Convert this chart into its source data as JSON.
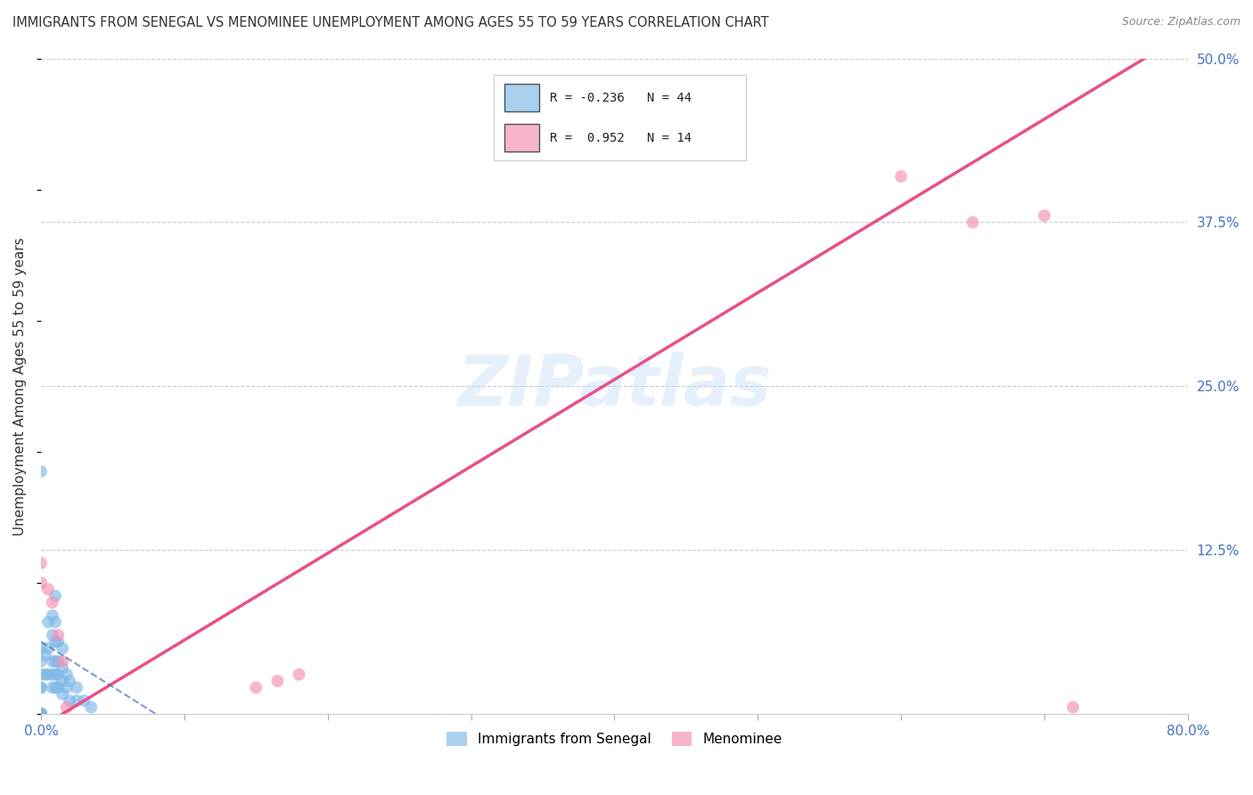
{
  "title": "IMMIGRANTS FROM SENEGAL VS MENOMINEE UNEMPLOYMENT AMONG AGES 55 TO 59 YEARS CORRELATION CHART",
  "source": "Source: ZipAtlas.com",
  "ylabel": "Unemployment Among Ages 55 to 59 years",
  "xlim": [
    0.0,
    0.8
  ],
  "ylim": [
    0.0,
    0.5
  ],
  "xticks": [
    0.0,
    0.1,
    0.2,
    0.3,
    0.4,
    0.5,
    0.6,
    0.7,
    0.8
  ],
  "xticklabels": [
    "0.0%",
    "",
    "",
    "",
    "",
    "",
    "",
    "",
    "80.0%"
  ],
  "yticks": [
    0.0,
    0.125,
    0.25,
    0.375,
    0.5
  ],
  "yticklabels": [
    "",
    "12.5%",
    "25.0%",
    "37.5%",
    "50.0%"
  ],
  "watermark": "ZIPatlas",
  "senegal_color": "#7db8e8",
  "menominee_color": "#f48fb1",
  "senegal_line_color": "#4472b8",
  "menominee_line_color": "#e8508a",
  "background_color": "#ffffff",
  "grid_color": "#cccccc",
  "senegal_points_x": [
    0.0,
    0.0,
    0.0,
    0.0,
    0.0,
    0.0,
    0.0,
    0.0,
    0.0,
    0.0,
    0.0,
    0.0,
    0.003,
    0.003,
    0.005,
    0.005,
    0.005,
    0.008,
    0.008,
    0.008,
    0.008,
    0.008,
    0.01,
    0.01,
    0.01,
    0.01,
    0.01,
    0.01,
    0.012,
    0.012,
    0.012,
    0.012,
    0.015,
    0.015,
    0.015,
    0.015,
    0.018,
    0.018,
    0.02,
    0.02,
    0.025,
    0.025,
    0.03,
    0.035
  ],
  "senegal_points_y": [
    0.0,
    0.0,
    0.0,
    0.0,
    0.0,
    0.0,
    0.02,
    0.02,
    0.03,
    0.04,
    0.05,
    0.185,
    0.03,
    0.045,
    0.03,
    0.05,
    0.07,
    0.02,
    0.03,
    0.04,
    0.06,
    0.075,
    0.02,
    0.03,
    0.04,
    0.055,
    0.07,
    0.09,
    0.02,
    0.03,
    0.04,
    0.055,
    0.015,
    0.025,
    0.035,
    0.05,
    0.02,
    0.03,
    0.01,
    0.025,
    0.01,
    0.02,
    0.01,
    0.005
  ],
  "menominee_points_x": [
    0.0,
    0.0,
    0.005,
    0.008,
    0.012,
    0.015,
    0.018,
    0.15,
    0.165,
    0.18,
    0.6,
    0.65,
    0.7,
    0.72
  ],
  "menominee_points_y": [
    0.1,
    0.115,
    0.095,
    0.085,
    0.06,
    0.04,
    0.005,
    0.02,
    0.025,
    0.03,
    0.41,
    0.375,
    0.38,
    0.005
  ],
  "menominee_line_x_start": 0.0,
  "menominee_line_y_start": -0.01,
  "menominee_line_x_end": 0.8,
  "menominee_line_y_end": 0.52,
  "senegal_line_x_start": 0.0,
  "senegal_line_y_start": 0.055,
  "senegal_line_x_end": 0.08,
  "senegal_line_y_end": 0.0
}
